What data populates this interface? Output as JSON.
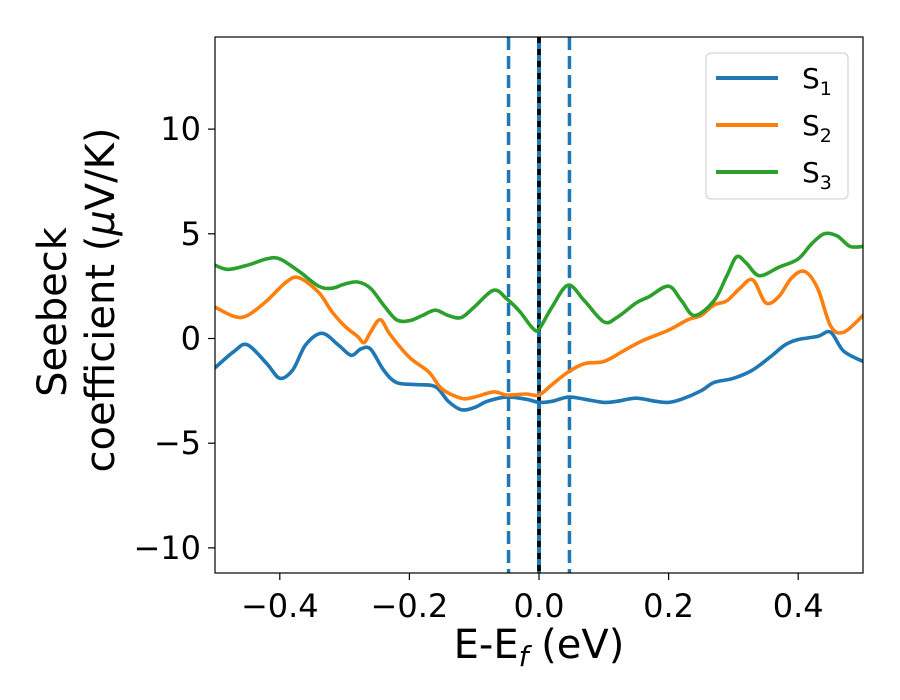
{
  "chart_data": {
    "type": "line",
    "title": "",
    "xlabel": "E-E",
    "xlabel_sub": "f",
    "xlabel_unit": " (eV)",
    "ylabel_line1": "Seebeck",
    "ylabel_line2_pre": "coefficient  (",
    "ylabel_mu": "μ",
    "ylabel_line2_post": "V/K)",
    "xlim": [
      -0.5,
      0.5
    ],
    "ylim": [
      -11.2,
      14.4
    ],
    "x_ticks": [
      -0.4,
      -0.2,
      0.0,
      0.2,
      0.4
    ],
    "x_tick_labels": [
      "−0.4",
      "−0.2",
      "0.0",
      "0.2",
      "0.4"
    ],
    "y_ticks": [
      -10,
      -5,
      0,
      5,
      10
    ],
    "y_tick_labels": [
      "−10",
      "−5",
      "0",
      "5",
      "10"
    ],
    "grid": false,
    "legend_position": "top-right",
    "vertical_lines": [
      {
        "x": -0.047,
        "style": "dashed",
        "color": "#1f77b4"
      },
      {
        "x": 0.0,
        "style": "solid",
        "color": "#1f77b4"
      },
      {
        "x": 0.0,
        "style": "dotted",
        "color": "#000000"
      },
      {
        "x": 0.047,
        "style": "dashed",
        "color": "#1f77b4"
      }
    ],
    "series": [
      {
        "name": "S",
        "subscript": "1",
        "color": "#1f77b4",
        "points": [
          [
            -0.5,
            -1.4
          ],
          [
            -0.47,
            -0.6
          ],
          [
            -0.45,
            -0.3
          ],
          [
            -0.42,
            -1.2
          ],
          [
            -0.4,
            -1.9
          ],
          [
            -0.38,
            -1.5
          ],
          [
            -0.36,
            -0.3
          ],
          [
            -0.335,
            0.25
          ],
          [
            -0.31,
            -0.3
          ],
          [
            -0.29,
            -0.8
          ],
          [
            -0.275,
            -0.5
          ],
          [
            -0.26,
            -0.5
          ],
          [
            -0.24,
            -1.5
          ],
          [
            -0.22,
            -2.1
          ],
          [
            -0.19,
            -2.2
          ],
          [
            -0.16,
            -2.3
          ],
          [
            -0.14,
            -3.0
          ],
          [
            -0.12,
            -3.4
          ],
          [
            -0.1,
            -3.3
          ],
          [
            -0.08,
            -3.0
          ],
          [
            -0.05,
            -2.8
          ],
          [
            -0.02,
            -2.9
          ],
          [
            0.0,
            -3.05
          ],
          [
            0.02,
            -3.0
          ],
          [
            0.045,
            -2.8
          ],
          [
            0.07,
            -2.9
          ],
          [
            0.1,
            -3.05
          ],
          [
            0.12,
            -3.0
          ],
          [
            0.15,
            -2.85
          ],
          [
            0.18,
            -3.0
          ],
          [
            0.2,
            -3.05
          ],
          [
            0.22,
            -2.9
          ],
          [
            0.25,
            -2.5
          ],
          [
            0.27,
            -2.1
          ],
          [
            0.3,
            -1.9
          ],
          [
            0.33,
            -1.5
          ],
          [
            0.36,
            -0.8
          ],
          [
            0.38,
            -0.3
          ],
          [
            0.4,
            -0.05
          ],
          [
            0.43,
            0.1
          ],
          [
            0.45,
            0.3
          ],
          [
            0.47,
            -0.6
          ],
          [
            0.5,
            -1.1
          ]
        ]
      },
      {
        "name": "S",
        "subscript": "2",
        "color": "#ff7f0e",
        "points": [
          [
            -0.5,
            1.5
          ],
          [
            -0.47,
            1.05
          ],
          [
            -0.45,
            1.1
          ],
          [
            -0.42,
            1.8
          ],
          [
            -0.39,
            2.7
          ],
          [
            -0.37,
            2.9
          ],
          [
            -0.34,
            2.2
          ],
          [
            -0.32,
            1.3
          ],
          [
            -0.3,
            0.6
          ],
          [
            -0.28,
            0.1
          ],
          [
            -0.27,
            -0.2
          ],
          [
            -0.26,
            0.3
          ],
          [
            -0.245,
            0.9
          ],
          [
            -0.23,
            0.2
          ],
          [
            -0.2,
            -0.9
          ],
          [
            -0.17,
            -1.6
          ],
          [
            -0.15,
            -2.4
          ],
          [
            -0.12,
            -2.85
          ],
          [
            -0.1,
            -2.8
          ],
          [
            -0.07,
            -2.55
          ],
          [
            -0.05,
            -2.7
          ],
          [
            -0.02,
            -2.65
          ],
          [
            0.0,
            -2.7
          ],
          [
            0.02,
            -2.2
          ],
          [
            0.045,
            -1.6
          ],
          [
            0.07,
            -1.2
          ],
          [
            0.1,
            -1.1
          ],
          [
            0.13,
            -0.6
          ],
          [
            0.16,
            -0.1
          ],
          [
            0.2,
            0.4
          ],
          [
            0.23,
            0.9
          ],
          [
            0.25,
            1.1
          ],
          [
            0.27,
            1.6
          ],
          [
            0.29,
            1.8
          ],
          [
            0.31,
            2.4
          ],
          [
            0.33,
            2.8
          ],
          [
            0.35,
            1.7
          ],
          [
            0.37,
            2.0
          ],
          [
            0.39,
            2.9
          ],
          [
            0.41,
            3.2
          ],
          [
            0.43,
            2.4
          ],
          [
            0.45,
            0.6
          ],
          [
            0.47,
            0.3
          ],
          [
            0.5,
            1.1
          ]
        ]
      },
      {
        "name": "S",
        "subscript": "3",
        "color": "#2ca02c",
        "points": [
          [
            -0.5,
            3.5
          ],
          [
            -0.48,
            3.3
          ],
          [
            -0.45,
            3.5
          ],
          [
            -0.42,
            3.8
          ],
          [
            -0.4,
            3.8
          ],
          [
            -0.37,
            3.2
          ],
          [
            -0.34,
            2.5
          ],
          [
            -0.32,
            2.4
          ],
          [
            -0.3,
            2.6
          ],
          [
            -0.28,
            2.7
          ],
          [
            -0.26,
            2.4
          ],
          [
            -0.24,
            1.6
          ],
          [
            -0.22,
            0.9
          ],
          [
            -0.2,
            0.85
          ],
          [
            -0.18,
            1.1
          ],
          [
            -0.16,
            1.35
          ],
          [
            -0.14,
            1.1
          ],
          [
            -0.12,
            1.0
          ],
          [
            -0.1,
            1.5
          ],
          [
            -0.07,
            2.3
          ],
          [
            -0.05,
            1.9
          ],
          [
            -0.03,
            1.3
          ],
          [
            -0.01,
            0.5
          ],
          [
            0.0,
            0.45
          ],
          [
            0.02,
            1.5
          ],
          [
            0.045,
            2.55
          ],
          [
            0.07,
            1.8
          ],
          [
            0.1,
            0.8
          ],
          [
            0.12,
            1.0
          ],
          [
            0.15,
            1.7
          ],
          [
            0.17,
            2.0
          ],
          [
            0.2,
            2.5
          ],
          [
            0.22,
            1.8
          ],
          [
            0.24,
            1.1
          ],
          [
            0.27,
            1.8
          ],
          [
            0.29,
            3.0
          ],
          [
            0.305,
            3.9
          ],
          [
            0.32,
            3.6
          ],
          [
            0.34,
            3.0
          ],
          [
            0.37,
            3.4
          ],
          [
            0.4,
            3.8
          ],
          [
            0.42,
            4.5
          ],
          [
            0.44,
            5.0
          ],
          [
            0.46,
            4.9
          ],
          [
            0.48,
            4.4
          ],
          [
            0.5,
            4.4
          ]
        ]
      }
    ]
  }
}
